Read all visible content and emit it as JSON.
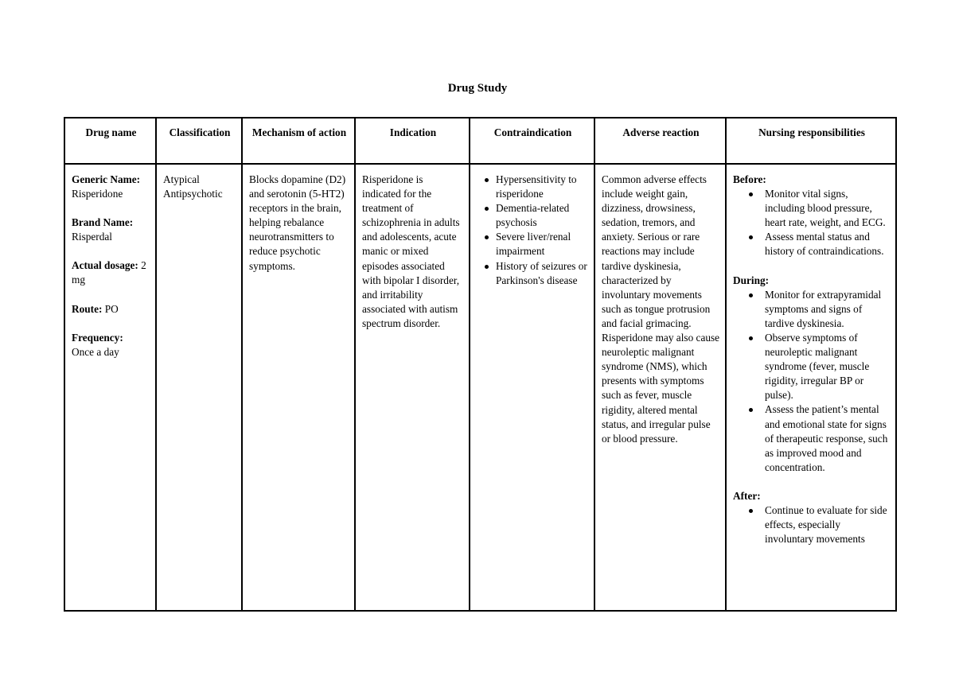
{
  "title": "Drug Study",
  "headers": [
    "Drug name",
    "Classification",
    "Mechanism of action",
    "Indication",
    "Contraindication",
    "Adverse reaction",
    "Nursing responsibilities"
  ],
  "drug": {
    "generic_label": "Generic Name:",
    "generic_value": "Risperidone",
    "brand_label": "Brand Name:",
    "brand_value": "Risperdal",
    "dosage_label": "Actual dosage:",
    "dosage_value": "2 mg",
    "route_label": "Route:",
    "route_value": "PO",
    "frequency_label": "Frequency:",
    "frequency_value": "Once a day"
  },
  "classification": "Atypical Antipsychotic",
  "mechanism": "Blocks dopamine (D2) and serotonin (5-HT2) receptors in the brain, helping rebalance neurotransmitters to reduce psychotic symptoms.",
  "indication": "Risperidone is indicated for the treatment of schizophrenia in adults and adolescents, acute manic or mixed episodes associated with bipolar I disorder, and irritability associated with autism spectrum disorder.",
  "contraindications": [
    "Hypersensitivity to risperidone",
    "Dementia-related psychosis",
    "Severe liver/renal impairment",
    "History of seizures or Parkinson's disease"
  ],
  "adverse": "Common adverse effects include weight gain, dizziness, drowsiness, sedation, tremors, and anxiety. Serious or rare reactions may include tardive dyskinesia, characterized by involuntary movements such as tongue protrusion and facial grimacing. Risperidone may also cause neuroleptic malignant syndrome (NMS), which presents with symptoms such as fever, muscle rigidity, altered mental status, and irregular pulse or blood pressure.",
  "nursing": {
    "before_label": "Before:",
    "before": [
      "Monitor vital signs, including blood pressure, heart rate, weight, and ECG.",
      "Assess mental status and history of contraindications."
    ],
    "during_label": "During:",
    "during": [
      "Monitor for extrapyramidal symptoms and signs of tardive dyskinesia.",
      "Observe symptoms of neuroleptic malignant syndrome (fever, muscle rigidity, irregular BP or pulse).",
      "Assess the patient’s mental and emotional state for signs of therapeutic response, such as improved mood and concentration."
    ],
    "after_label": "After:",
    "after": [
      "Continue to evaluate for side effects, especially involuntary movements"
    ]
  }
}
